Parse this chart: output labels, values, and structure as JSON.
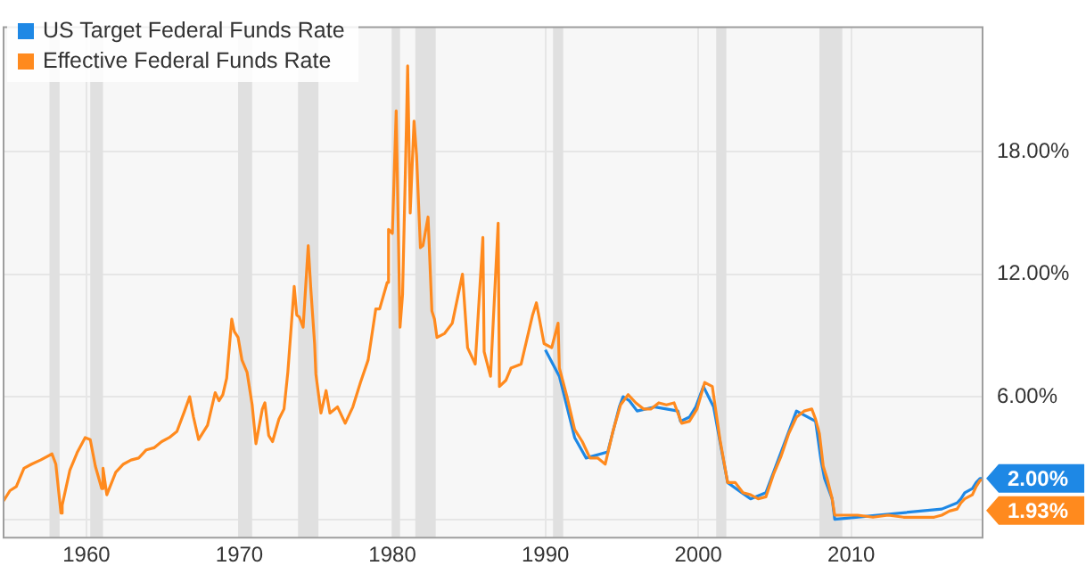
{
  "chart_data": {
    "type": "line",
    "series": [
      {
        "name": "US Target Federal Funds Rate",
        "color": "#1e88e5",
        "x": [
          "1990-01",
          "1990-12",
          "1991-12",
          "1992-09",
          "1994-02",
          "1994-11",
          "1995-02",
          "1995-07",
          "1996-01",
          "1997-03",
          "1998-09",
          "1998-11",
          "1999-06",
          "1999-11",
          "2000-05",
          "2001-01",
          "2001-06",
          "2001-12",
          "2002-11",
          "2003-06",
          "2004-06",
          "2005-06",
          "2006-06",
          "2007-09",
          "2008-01",
          "2008-04",
          "2008-10",
          "2008-12",
          "2015-12",
          "2016-12",
          "2017-03",
          "2017-06",
          "2017-12",
          "2018-03",
          "2018-06",
          "2018-08"
        ],
        "values": [
          8.3,
          7.0,
          4.0,
          3.0,
          3.3,
          5.5,
          6.0,
          5.8,
          5.3,
          5.5,
          5.3,
          4.8,
          5.0,
          5.5,
          6.5,
          5.5,
          3.8,
          1.8,
          1.3,
          1.0,
          1.3,
          3.3,
          5.3,
          4.8,
          3.0,
          2.0,
          1.0,
          0.0,
          0.5,
          0.8,
          1.0,
          1.3,
          1.5,
          1.8,
          2.0,
          2.0
        ]
      },
      {
        "name": "Effective Federal Funds Rate",
        "color": "#ff8a1e",
        "x": [
          "1954-08",
          "1955-01",
          "1955-06",
          "1955-12",
          "1956-06",
          "1957-01",
          "1957-10",
          "1958-01",
          "1958-05",
          "1958-06",
          "1958-12",
          "1959-06",
          "1959-12",
          "1960-04",
          "1960-08",
          "1961-01",
          "1961-02",
          "1961-05",
          "1961-12",
          "1962-06",
          "1962-12",
          "1963-06",
          "1963-12",
          "1964-06",
          "1964-12",
          "1965-06",
          "1965-12",
          "1966-06",
          "1966-10",
          "1967-01",
          "1967-05",
          "1967-12",
          "1968-06",
          "1968-09",
          "1968-12",
          "1969-03",
          "1969-07",
          "1969-09",
          "1969-12",
          "1970-03",
          "1970-07",
          "1970-11",
          "1971-02",
          "1971-07",
          "1971-09",
          "1971-12",
          "1972-03",
          "1972-08",
          "1972-12",
          "1973-03",
          "1973-08",
          "1973-10",
          "1973-12",
          "1974-03",
          "1974-07",
          "1974-09",
          "1974-12",
          "1975-01",
          "1975-05",
          "1975-09",
          "1975-12",
          "1976-06",
          "1976-12",
          "1977-06",
          "1977-12",
          "1978-06",
          "1978-12",
          "1979-03",
          "1979-09",
          "1979-10",
          "1980-01",
          "1980-04",
          "1980-07",
          "1980-09",
          "1980-12",
          "1981-01",
          "1981-03",
          "1981-06",
          "1981-08",
          "1981-11",
          "1982-01",
          "1982-05",
          "1982-08",
          "1982-10",
          "1982-12",
          "1983-06",
          "1983-12",
          "1984-08",
          "1984-12",
          "1985-06",
          "1985-12",
          "1986-01",
          "1986-06",
          "1986-12",
          "1987-01",
          "1987-06",
          "1987-10",
          "1988-06",
          "1989-03",
          "1989-06",
          "1989-12",
          "1990-06",
          "1990-11",
          "1990-12",
          "1991-06",
          "1991-12",
          "1992-06",
          "1992-12",
          "1993-06",
          "1993-12",
          "1994-06",
          "1994-12",
          "1995-06",
          "1995-12",
          "1996-06",
          "1996-12",
          "1997-06",
          "1997-12",
          "1998-06",
          "1998-12",
          "1999-06",
          "1999-12",
          "2000-06",
          "2000-12",
          "2001-06",
          "2001-12",
          "2002-06",
          "2002-12",
          "2003-06",
          "2003-12",
          "2004-06",
          "2004-12",
          "2005-06",
          "2005-12",
          "2006-06",
          "2006-12",
          "2007-06",
          "2007-09",
          "2007-12",
          "2008-03",
          "2008-06",
          "2008-10",
          "2008-12",
          "2009-06",
          "2010-06",
          "2011-06",
          "2012-06",
          "2013-06",
          "2014-06",
          "2015-06",
          "2015-12",
          "2016-06",
          "2016-12",
          "2017-03",
          "2017-06",
          "2017-12",
          "2018-03",
          "2018-06",
          "2018-08"
        ],
        "values": [
          0.9,
          1.4,
          1.6,
          2.5,
          2.7,
          2.9,
          3.2,
          2.7,
          0.3,
          0.7,
          2.4,
          3.3,
          4.0,
          3.9,
          2.6,
          1.5,
          2.5,
          1.2,
          2.3,
          2.7,
          2.9,
          3.0,
          3.4,
          3.5,
          3.8,
          4.0,
          4.3,
          5.3,
          6.0,
          5.0,
          3.9,
          4.6,
          6.2,
          5.8,
          6.1,
          6.9,
          9.8,
          9.2,
          8.9,
          7.8,
          7.2,
          5.6,
          3.7,
          5.4,
          5.7,
          4.1,
          3.8,
          4.9,
          5.4,
          7.2,
          11.4,
          10.0,
          9.9,
          9.4,
          13.4,
          11.3,
          8.6,
          7.1,
          5.2,
          6.3,
          5.2,
          5.5,
          4.7,
          5.5,
          6.7,
          7.8,
          10.3,
          10.3,
          11.6,
          14.2,
          14.0,
          20.0,
          9.4,
          11.0,
          19.2,
          22.2,
          15.0,
          19.5,
          17.8,
          13.3,
          13.4,
          14.8,
          10.2,
          9.8,
          8.9,
          9.1,
          9.6,
          12.0,
          8.4,
          7.6,
          13.8,
          8.2,
          7.0,
          14.5,
          6.5,
          6.8,
          7.4,
          7.6,
          10.0,
          10.6,
          8.6,
          8.4,
          9.6,
          7.4,
          6.0,
          4.4,
          3.8,
          3.0,
          3.0,
          2.7,
          4.3,
          5.6,
          6.1,
          5.7,
          5.4,
          5.4,
          5.7,
          5.6,
          5.7,
          4.7,
          4.8,
          5.4,
          6.7,
          6.5,
          3.9,
          1.8,
          1.8,
          1.3,
          1.2,
          1.0,
          1.1,
          2.2,
          3.1,
          4.2,
          5.0,
          5.3,
          5.4,
          4.9,
          4.2,
          2.6,
          2.0,
          1.0,
          0.2,
          0.2,
          0.2,
          0.1,
          0.2,
          0.1,
          0.1,
          0.1,
          0.2,
          0.4,
          0.5,
          0.8,
          1.0,
          1.2,
          1.6,
          1.9,
          1.93
        ]
      }
    ],
    "xlim": [
      "1954-08",
      "2018-08"
    ],
    "xticks": [
      "1960",
      "1970",
      "1980",
      "1990",
      "2000",
      "2010"
    ],
    "ylim": [
      -0.9,
      24.1
    ],
    "yticks": [
      {
        "value": 0,
        "label": null
      },
      {
        "value": 6,
        "label": "6.00%"
      },
      {
        "value": 12,
        "label": "12.00%"
      },
      {
        "value": 18,
        "label": "18.00%"
      }
    ],
    "bands": [
      {
        "axis": "x",
        "from": "1957-08",
        "to": "1958-04",
        "color": "#e0e0e0"
      },
      {
        "axis": "x",
        "from": "1960-04",
        "to": "1961-02",
        "color": "#e0e0e0"
      },
      {
        "axis": "x",
        "from": "1969-12",
        "to": "1970-11",
        "color": "#e0e0e0"
      },
      {
        "axis": "x",
        "from": "1973-11",
        "to": "1975-03",
        "color": "#e0e0e0"
      },
      {
        "axis": "x",
        "from": "1980-01",
        "to": "1980-07",
        "color": "#e0e0e0"
      },
      {
        "axis": "x",
        "from": "1981-07",
        "to": "1982-11",
        "color": "#e0e0e0"
      },
      {
        "axis": "x",
        "from": "1990-07",
        "to": "1991-03",
        "color": "#e0e0e0"
      },
      {
        "axis": "x",
        "from": "2001-03",
        "to": "2001-11",
        "color": "#e0e0e0"
      },
      {
        "axis": "x",
        "from": "2007-12",
        "to": "2009-06",
        "color": "#e0e0e0"
      }
    ],
    "annotations": [
      {
        "text": "2.00%",
        "x": "2018-08",
        "y": 2.0
      },
      {
        "text": "1.93%",
        "x": "2018-08",
        "y": 1.93
      }
    ],
    "grid": true,
    "legend": "top left",
    "marker": "none",
    "line_style": "solid"
  }
}
